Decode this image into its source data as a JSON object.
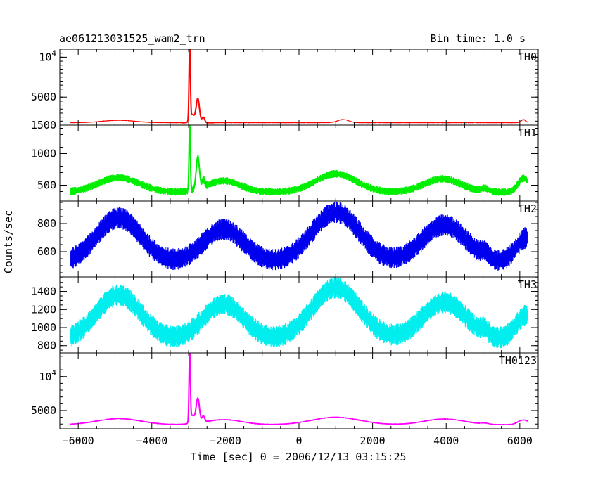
{
  "header": {
    "title": "ae061213031525_wam2_trn",
    "bin_time": "Bin time: 1.0 s"
  },
  "chart_data": {
    "type": "line",
    "xlabel": "Time [sec] 0 = 2006/12/13 03:15:25",
    "ylabel": "Counts/sec",
    "xlim": [
      -6500,
      6500
    ],
    "x_ticks": [
      {
        "v": -6000,
        "t": "−6000"
      },
      {
        "v": -4000,
        "t": "−4000"
      },
      {
        "v": -2000,
        "t": "−2000"
      },
      {
        "v": 0,
        "t": "0"
      },
      {
        "v": 2000,
        "t": "2000"
      },
      {
        "v": 4000,
        "t": "4000"
      },
      {
        "v": 6000,
        "t": "6000"
      }
    ],
    "panels": [
      {
        "name": "TH0",
        "color": "#ff0000",
        "ylim": [
          1500,
          11000
        ],
        "y_ticks": [
          {
            "v": 1500,
            "t": "1500"
          },
          {
            "v": 5000,
            "t": "5000"
          },
          {
            "v": 10000,
            "t": "10^4"
          }
        ],
        "baseline": 1800,
        "noise": 60,
        "bumps": [
          {
            "x": -4900,
            "a": 300,
            "w": 450
          },
          {
            "x": 1200,
            "a": 400,
            "w": 150
          },
          {
            "x": 6100,
            "a": 400,
            "w": 60
          }
        ],
        "spikes": [
          {
            "x": -2970,
            "a": 9400,
            "w": 18
          },
          {
            "x": -2750,
            "a": 3000,
            "w": 45
          },
          {
            "x": -2600,
            "a": 700,
            "w": 35
          },
          {
            "x": -2900,
            "a": 1000,
            "w": 60
          }
        ]
      },
      {
        "name": "TH1",
        "color": "#00ee00",
        "ylim": [
          250,
          1450
        ],
        "y_ticks": [
          {
            "v": 500,
            "t": "500"
          },
          {
            "v": 1000,
            "t": "1000"
          }
        ],
        "baseline": 390,
        "noise": 55,
        "bumps": [
          {
            "x": -4900,
            "a": 230,
            "w": 550
          },
          {
            "x": -2050,
            "a": 180,
            "w": 450
          },
          {
            "x": 1000,
            "a": 290,
            "w": 550
          },
          {
            "x": 3900,
            "a": 210,
            "w": 500
          },
          {
            "x": 5050,
            "a": 50,
            "w": 100
          },
          {
            "x": 6100,
            "a": 220,
            "w": 150
          }
        ],
        "spikes": [
          {
            "x": -2970,
            "a": 1050,
            "w": 18
          },
          {
            "x": -2750,
            "a": 500,
            "w": 45
          },
          {
            "x": -2600,
            "a": 120,
            "w": 35
          }
        ]
      },
      {
        "name": "TH2",
        "color": "#0000ee",
        "ylim": [
          420,
          960
        ],
        "y_ticks": [
          {
            "v": 600,
            "t": "600"
          },
          {
            "v": 800,
            "t": "800"
          }
        ],
        "baseline": 520,
        "noise": 70,
        "bumps": [
          {
            "x": -4900,
            "a": 320,
            "w": 600
          },
          {
            "x": -2050,
            "a": 240,
            "w": 550
          },
          {
            "x": 1000,
            "a": 360,
            "w": 650
          },
          {
            "x": 3950,
            "a": 270,
            "w": 600
          },
          {
            "x": 5050,
            "a": 40,
            "w": 100
          },
          {
            "x": 6200,
            "a": 180,
            "w": 300
          }
        ],
        "spikes": []
      },
      {
        "name": "TH3",
        "color": "#00eeee",
        "ylim": [
          720,
          1560
        ],
        "y_ticks": [
          {
            "v": 800,
            "t": "800"
          },
          {
            "v": 1000,
            "t": "1000"
          },
          {
            "v": 1200,
            "t": "1200"
          },
          {
            "v": 1400,
            "t": "1400"
          }
        ],
        "baseline": 860,
        "noise": 110,
        "bumps": [
          {
            "x": -4900,
            "a": 500,
            "w": 600
          },
          {
            "x": -2050,
            "a": 400,
            "w": 550
          },
          {
            "x": 1000,
            "a": 580,
            "w": 650
          },
          {
            "x": 3950,
            "a": 420,
            "w": 600
          },
          {
            "x": 5050,
            "a": 60,
            "w": 100
          },
          {
            "x": 6200,
            "a": 280,
            "w": 300
          }
        ],
        "spikes": []
      },
      {
        "name": "TH0123",
        "color": "#ff00ff",
        "ylim": [
          2300,
          13500
        ],
        "y_ticks": [
          {
            "v": 5000,
            "t": "5000"
          },
          {
            "v": 10000,
            "t": "10^4"
          }
        ],
        "baseline": 2900,
        "noise": 100,
        "bumps": [
          {
            "x": -4900,
            "a": 900,
            "w": 600
          },
          {
            "x": -2050,
            "a": 750,
            "w": 500
          },
          {
            "x": 1000,
            "a": 1100,
            "w": 650
          },
          {
            "x": 3950,
            "a": 850,
            "w": 550
          },
          {
            "x": 5050,
            "a": 150,
            "w": 100
          },
          {
            "x": 6100,
            "a": 700,
            "w": 150
          }
        ],
        "spikes": [
          {
            "x": -2970,
            "a": 10200,
            "w": 18
          },
          {
            "x": -2750,
            "a": 3600,
            "w": 45
          },
          {
            "x": -2600,
            "a": 900,
            "w": 35
          },
          {
            "x": -2900,
            "a": 1200,
            "w": 60
          }
        ]
      }
    ]
  }
}
